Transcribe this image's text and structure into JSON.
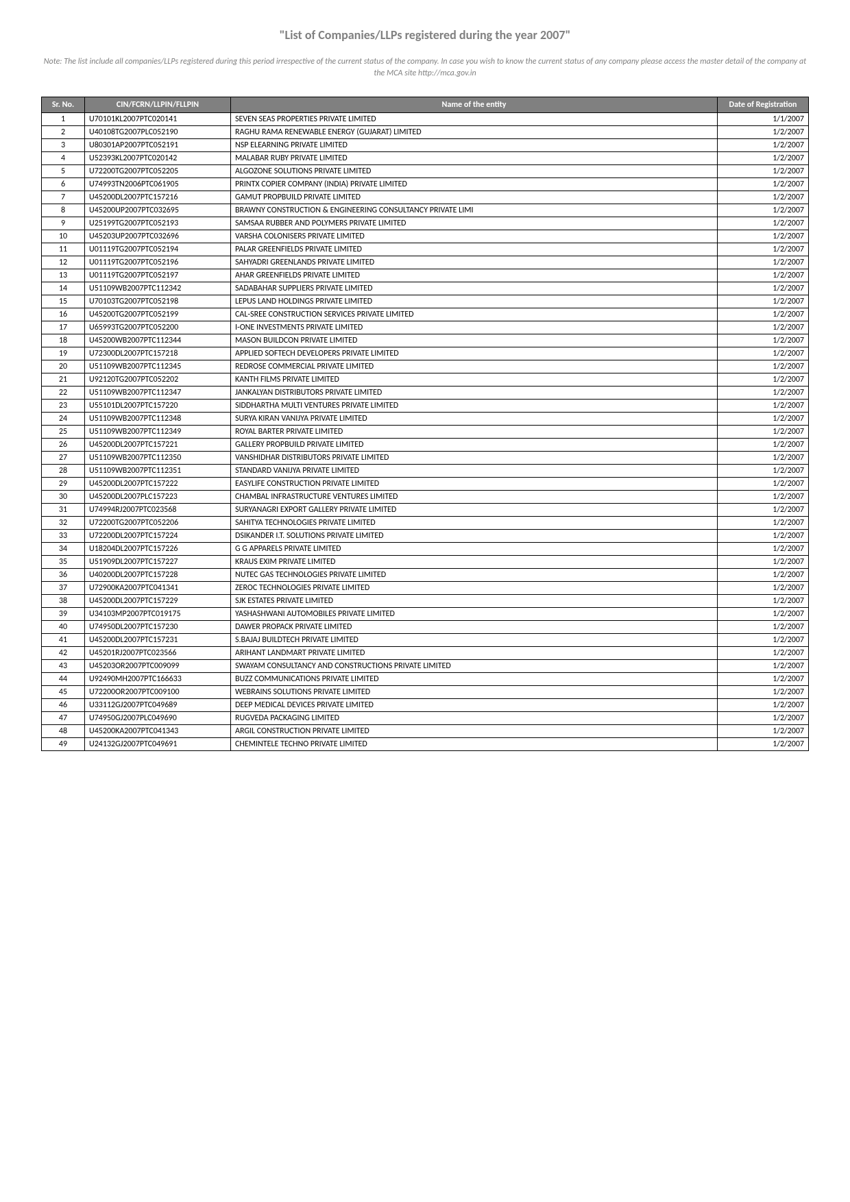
{
  "title": "\"List of Companies/LLPs registered during the year 2007\"",
  "note": "Note: The list include all companies/LLPs registered during this period irrespective of the current status of the company. In case you wish to know the current status of any company please access the master detail of the company at the MCA site http://mca.gov.in",
  "headers": {
    "sr": "Sr. No.",
    "cin": "CIN/FCRN/LLPIN/FLLPIN",
    "name": "Name of the entity",
    "date": "Date of Registration"
  },
  "rows": [
    {
      "sr": "1",
      "cin": "U70101KL2007PTC020141",
      "name": "SEVEN SEAS PROPERTIES PRIVATE LIMITED",
      "date": "1/1/2007"
    },
    {
      "sr": "2",
      "cin": "U40108TG2007PLC052190",
      "name": "RAGHU RAMA RENEWABLE ENERGY (GUJARAT) LIMITED",
      "date": "1/2/2007"
    },
    {
      "sr": "3",
      "cin": "U80301AP2007PTC052191",
      "name": "NSP ELEARNING PRIVATE LIMITED",
      "date": "1/2/2007"
    },
    {
      "sr": "4",
      "cin": "U52393KL2007PTC020142",
      "name": "MALABAR RUBY PRIVATE LIMITED",
      "date": "1/2/2007"
    },
    {
      "sr": "5",
      "cin": "U72200TG2007PTC052205",
      "name": "ALGOZONE SOLUTIONS PRIVATE LIMITED",
      "date": "1/2/2007"
    },
    {
      "sr": "6",
      "cin": "U74993TN2006PTC061905",
      "name": "PRINTX COPIER COMPANY (INDIA) PRIVATE LIMITED",
      "date": "1/2/2007"
    },
    {
      "sr": "7",
      "cin": "U45200DL2007PTC157216",
      "name": "GAMUT PROPBUILD PRIVATE LIMITED",
      "date": "1/2/2007"
    },
    {
      "sr": "8",
      "cin": "U45200UP2007PTC032695",
      "name": "BRAWNY CONSTRUCTION & ENGINEERING CONSULTANCY PRIVATE LIMI",
      "date": "1/2/2007"
    },
    {
      "sr": "9",
      "cin": "U25199TG2007PTC052193",
      "name": "SAMSAA RUBBER AND POLYMERS PRIVATE LIMITED",
      "date": "1/2/2007"
    },
    {
      "sr": "10",
      "cin": "U45203UP2007PTC032696",
      "name": "VARSHA COLONISERS PRIVATE LIMITED",
      "date": "1/2/2007"
    },
    {
      "sr": "11",
      "cin": "U01119TG2007PTC052194",
      "name": "PALAR GREENFIELDS PRIVATE LIMITED",
      "date": "1/2/2007"
    },
    {
      "sr": "12",
      "cin": "U01119TG2007PTC052196",
      "name": "SAHYADRI GREENLANDS PRIVATE LIMITED",
      "date": "1/2/2007"
    },
    {
      "sr": "13",
      "cin": "U01119TG2007PTC052197",
      "name": "AHAR GREENFIELDS PRIVATE LIMITED",
      "date": "1/2/2007"
    },
    {
      "sr": "14",
      "cin": "U51109WB2007PTC112342",
      "name": "SADABAHAR SUPPLIERS PRIVATE LIMITED",
      "date": "1/2/2007"
    },
    {
      "sr": "15",
      "cin": "U70103TG2007PTC052198",
      "name": "LEPUS LAND HOLDINGS PRIVATE LIMITED",
      "date": "1/2/2007"
    },
    {
      "sr": "16",
      "cin": "U45200TG2007PTC052199",
      "name": "CAL-SREE CONSTRUCTION SERVICES PRIVATE LIMITED",
      "date": "1/2/2007"
    },
    {
      "sr": "17",
      "cin": "U65993TG2007PTC052200",
      "name": "I-ONE INVESTMENTS PRIVATE LIMITED",
      "date": "1/2/2007"
    },
    {
      "sr": "18",
      "cin": "U45200WB2007PTC112344",
      "name": "MASON BUILDCON PRIVATE LIMITED",
      "date": "1/2/2007"
    },
    {
      "sr": "19",
      "cin": "U72300DL2007PTC157218",
      "name": "APPLIED SOFTECH DEVELOPERS PRIVATE LIMITED",
      "date": "1/2/2007"
    },
    {
      "sr": "20",
      "cin": "U51109WB2007PTC112345",
      "name": "REDROSE COMMERCIAL PRIVATE LIMITED",
      "date": "1/2/2007"
    },
    {
      "sr": "21",
      "cin": "U92120TG2007PTC052202",
      "name": "KANTH FILMS PRIVATE LIMITED",
      "date": "1/2/2007"
    },
    {
      "sr": "22",
      "cin": "U51109WB2007PTC112347",
      "name": "JANKALYAN DISTRIBUTORS PRIVATE LIMITED",
      "date": "1/2/2007"
    },
    {
      "sr": "23",
      "cin": "U55101DL2007PTC157220",
      "name": "SIDDHARTHA MULTI VENTURES PRIVATE LIMITED",
      "date": "1/2/2007"
    },
    {
      "sr": "24",
      "cin": "U51109WB2007PTC112348",
      "name": "SURYA KIRAN VANIJYA PRIVATE LIMITED",
      "date": "1/2/2007"
    },
    {
      "sr": "25",
      "cin": "U51109WB2007PTC112349",
      "name": "ROYAL BARTER PRIVATE LIMITED",
      "date": "1/2/2007"
    },
    {
      "sr": "26",
      "cin": "U45200DL2007PTC157221",
      "name": "GALLERY PROPBUILD PRIVATE LIMITED",
      "date": "1/2/2007"
    },
    {
      "sr": "27",
      "cin": "U51109WB2007PTC112350",
      "name": "VANSHIDHAR DISTRIBUTORS PRIVATE LIMITED",
      "date": "1/2/2007"
    },
    {
      "sr": "28",
      "cin": "U51109WB2007PTC112351",
      "name": "STANDARD VANIJYA PRIVATE LIMITED",
      "date": "1/2/2007"
    },
    {
      "sr": "29",
      "cin": "U45200DL2007PTC157222",
      "name": "EASYLIFE CONSTRUCTION PRIVATE LIMITED",
      "date": "1/2/2007"
    },
    {
      "sr": "30",
      "cin": "U45200DL2007PLC157223",
      "name": "CHAMBAL INFRASTRUCTURE VENTURES LIMITED",
      "date": "1/2/2007"
    },
    {
      "sr": "31",
      "cin": "U74994RJ2007PTC023568",
      "name": "SURYANAGRI EXPORT GALLERY PRIVATE LIMITED",
      "date": "1/2/2007"
    },
    {
      "sr": "32",
      "cin": "U72200TG2007PTC052206",
      "name": "SAHITYA TECHNOLOGIES PRIVATE LIMITED",
      "date": "1/2/2007"
    },
    {
      "sr": "33",
      "cin": "U72200DL2007PTC157224",
      "name": "DSIKANDER I.T. SOLUTIONS PRIVATE LIMITED",
      "date": "1/2/2007"
    },
    {
      "sr": "34",
      "cin": "U18204DL2007PTC157226",
      "name": "G G APPARELS PRIVATE LIMITED",
      "date": "1/2/2007"
    },
    {
      "sr": "35",
      "cin": "U51909DL2007PTC157227",
      "name": "KRAUS EXIM PRIVATE LIMITED",
      "date": "1/2/2007"
    },
    {
      "sr": "36",
      "cin": "U40200DL2007PTC157228",
      "name": "NUTEC GAS TECHNOLOGIES PRIVATE LIMITED",
      "date": "1/2/2007"
    },
    {
      "sr": "37",
      "cin": "U72900KA2007PTC041341",
      "name": "ZEROC TECHNOLOGIES PRIVATE LIMITED",
      "date": "1/2/2007"
    },
    {
      "sr": "38",
      "cin": "U45200DL2007PTC157229",
      "name": "SJK ESTATES PRIVATE LIMITED",
      "date": "1/2/2007"
    },
    {
      "sr": "39",
      "cin": "U34103MP2007PTC019175",
      "name": "YASHASHWANI AUTOMOBILES PRIVATE LIMITED",
      "date": "1/2/2007"
    },
    {
      "sr": "40",
      "cin": "U74950DL2007PTC157230",
      "name": "DAWER PROPACK PRIVATE LIMITED",
      "date": "1/2/2007"
    },
    {
      "sr": "41",
      "cin": "U45200DL2007PTC157231",
      "name": "S.BAJAJ BUILDTECH PRIVATE LIMITED",
      "date": "1/2/2007"
    },
    {
      "sr": "42",
      "cin": "U45201RJ2007PTC023566",
      "name": "ARIHANT LANDMART PRIVATE LIMITED",
      "date": "1/2/2007"
    },
    {
      "sr": "43",
      "cin": "U45203OR2007PTC009099",
      "name": "SWAYAM CONSULTANCY AND CONSTRUCTIONS PRIVATE LIMITED",
      "date": "1/2/2007"
    },
    {
      "sr": "44",
      "cin": "U92490MH2007PTC166633",
      "name": "BUZZ COMMUNICATIONS PRIVATE LIMITED",
      "date": "1/2/2007"
    },
    {
      "sr": "45",
      "cin": "U72200OR2007PTC009100",
      "name": "WEBRAINS SOLUTIONS PRIVATE LIMITED",
      "date": "1/2/2007"
    },
    {
      "sr": "46",
      "cin": "U33112GJ2007PTC049689",
      "name": "DEEP MEDICAL DEVICES PRIVATE LIMITED",
      "date": "1/2/2007"
    },
    {
      "sr": "47",
      "cin": "U74950GJ2007PLC049690",
      "name": "RUGVEDA PACKAGING LIMITED",
      "date": "1/2/2007"
    },
    {
      "sr": "48",
      "cin": "U45200KA2007PTC041343",
      "name": "ARGIL CONSTRUCTION PRIVATE LIMITED",
      "date": "1/2/2007"
    },
    {
      "sr": "49",
      "cin": "U24132GJ2007PTC049691",
      "name": "CHEMINTELE TECHNO PRIVATE LIMITED",
      "date": "1/2/2007"
    }
  ]
}
